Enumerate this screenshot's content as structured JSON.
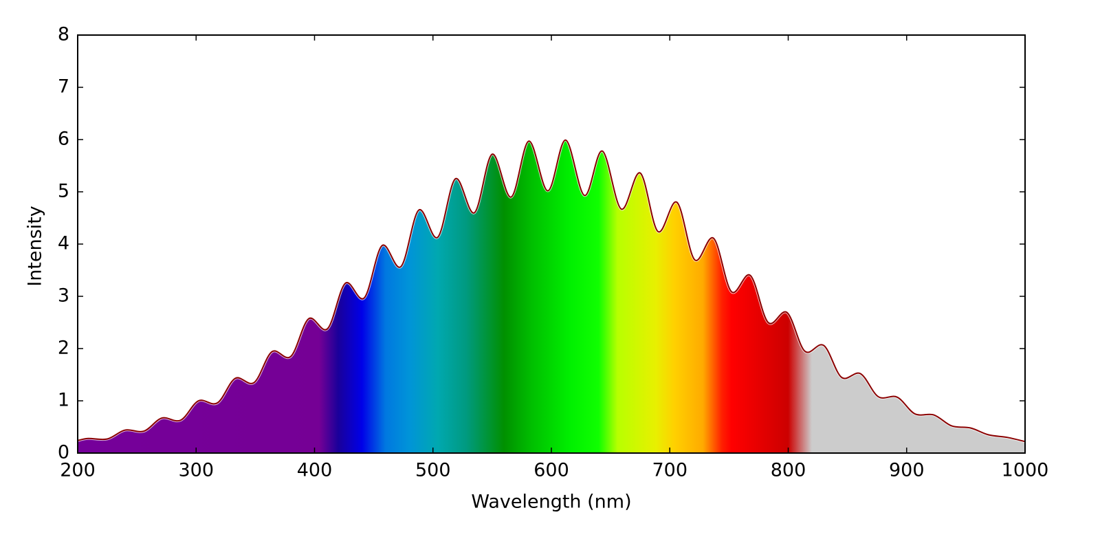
{
  "chart_data": {
    "type": "line",
    "fill": true,
    "color": "#8b0000",
    "xlabel": "Wavelength (nm)",
    "ylabel": "Intensity",
    "x": [
      200,
      209,
      225,
      240,
      256,
      271,
      287,
      302,
      318,
      333,
      349,
      364,
      380,
      395,
      411,
      426,
      442,
      457,
      473,
      488,
      504,
      519,
      535,
      550,
      566,
      581,
      597,
      612,
      628,
      643,
      659,
      675,
      690,
      706,
      721,
      737,
      752,
      768,
      783,
      799,
      814,
      830,
      845,
      861,
      876,
      892,
      907,
      923,
      938,
      954,
      969,
      985,
      1000
    ],
    "values": [
      0.24,
      0.28,
      0.27,
      0.44,
      0.42,
      0.67,
      0.63,
      1.0,
      0.96,
      1.43,
      1.35,
      1.94,
      1.85,
      2.57,
      2.38,
      3.25,
      2.97,
      3.97,
      3.57,
      4.65,
      4.13,
      5.25,
      4.6,
      5.72,
      4.9,
      5.97,
      5.02,
      5.99,
      4.93,
      5.78,
      4.67,
      5.36,
      4.24,
      4.8,
      3.7,
      4.11,
      3.09,
      3.4,
      2.5,
      2.69,
      1.95,
      2.06,
      1.45,
      1.52,
      1.08,
      1.07,
      0.75,
      0.73,
      0.52,
      0.48,
      0.35,
      0.3,
      0.22
    ],
    "xlim": [
      200,
      1000
    ],
    "xticks": [
      200,
      300,
      400,
      500,
      600,
      700,
      800,
      900,
      1000
    ],
    "ylim": [
      0,
      8
    ],
    "yticks": [
      0,
      1,
      2,
      3,
      4,
      5,
      6,
      7,
      8
    ]
  }
}
